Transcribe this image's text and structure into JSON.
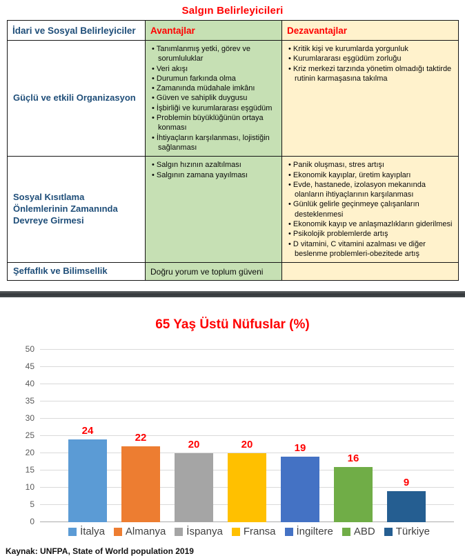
{
  "page_title": "Salgın Belirleyicileri",
  "table": {
    "headers": {
      "determinants": "İdari ve Sosyal Belirleyiciler",
      "advantages": "Avantajlar",
      "disadvantages": "Dezavantajlar"
    },
    "rows": [
      {
        "label": "Güçlü ve etkili Organizasyon",
        "advantages": [
          "Tanımlanmış yetki, görev ve sorumluluklar",
          "Veri akışı",
          "Durumun farkında olma",
          "Zamanında müdahale imkânı",
          "Güven ve sahiplik duygusu",
          "İşbirliği ve kurumlararası eşgüdüm",
          "Problemin büyüklüğünün ortaya konması",
          "İhtiyaçların karşılanması, lojistiğin sağlanması"
        ],
        "disadvantages": [
          "Kritik kişi ve kurumlarda yorgunluk",
          "Kurumlararası eşgüdüm zorluğu",
          "Kriz merkezi tarzında yönetim olmadığı taktirde rutinin karmaşasına takılma"
        ]
      },
      {
        "label": "Sosyal Kısıtlama Önlemlerinin Zamanında Devreye Girmesi",
        "advantages": [
          "Salgın hızının azaltılması",
          "Salgının zamana yayılması"
        ],
        "disadvantages": [
          "Panik oluşması, stres artışı",
          "Ekonomik kayıplar, üretim kayıpları",
          "Evde, hastanede, izolasyon mekanında olanların ihtiyaçlarının karşılanması",
          "Günlük gelirle geçinmeye çalışanların desteklenmesi",
          "Ekonomik kayıp ve anlaşmazlıkların giderilmesi",
          "Psikolojik problemlerde artış",
          "D vitamini, C vitamini azalması ve diğer beslenme problemleri-obezitede artış"
        ]
      },
      {
        "label": "Şeffaflık ve Bilimsellik",
        "advantages_text": "Doğru yorum ve toplum güveni",
        "disadvantages": []
      }
    ],
    "colors": {
      "advantages_bg": "#C6E0B4",
      "disadvantages_bg": "#FFF2CC",
      "label_text": "#1F4E79",
      "header_accent": "#FF0000"
    }
  },
  "chart_data": {
    "type": "bar",
    "title": "65 Yaş Üstü Nüfuslar (%)",
    "categories": [
      "İtalya",
      "Almanya",
      "İspanya",
      "Fransa",
      "İngiltere",
      "ABD",
      "Türkiye"
    ],
    "values": [
      24,
      22,
      20,
      20,
      19,
      16,
      9
    ],
    "bar_colors": [
      "#5B9BD5",
      "#ED7D31",
      "#A5A5A5",
      "#FFC000",
      "#4472C4",
      "#70AD47",
      "#255E91"
    ],
    "data_label_color": "#FF0000",
    "xlabel": "",
    "ylabel": "",
    "ylim": [
      0,
      50
    ],
    "yticks": [
      0,
      5,
      10,
      15,
      20,
      25,
      30,
      35,
      40,
      45,
      50
    ],
    "grid": true,
    "legend_position": "bottom"
  },
  "source_note": "Kaynak: UNFPA, State of World population 2019"
}
